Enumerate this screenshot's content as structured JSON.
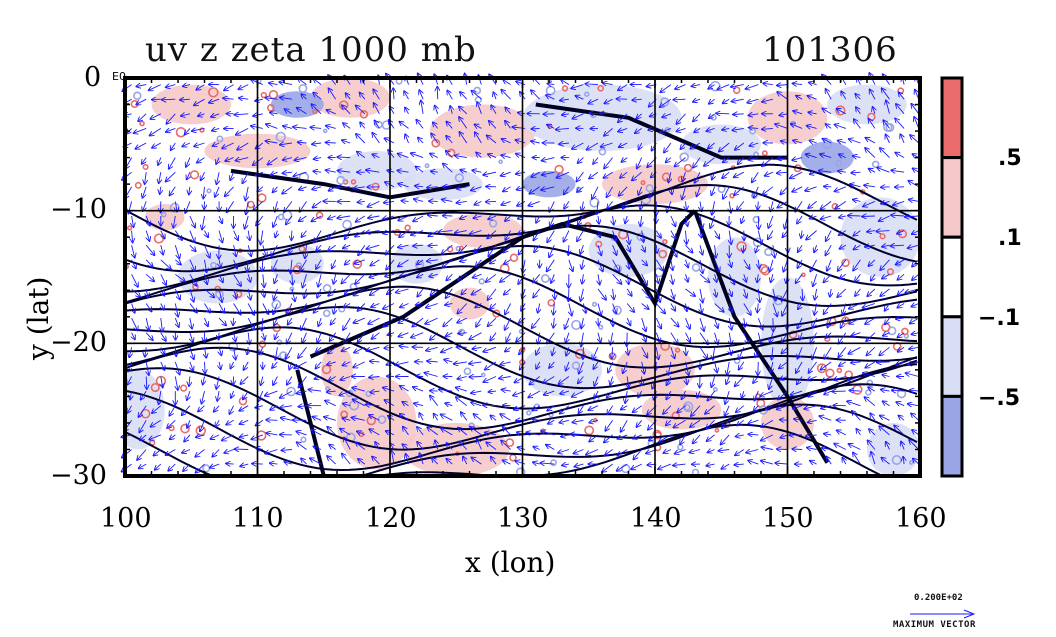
{
  "chart_data": {
    "type": "heatmap",
    "title": "uv z zeta 1000 mb",
    "title_right": "101306",
    "xlabel": "x (lon)",
    "ylabel": "y (lat)",
    "xlim": [
      100,
      160
    ],
    "ylim": [
      -30,
      0
    ],
    "x_ticks": [
      "100",
      "110",
      "120",
      "130",
      "140",
      "150",
      "160"
    ],
    "y_ticks": [
      "0",
      "−10",
      "−20",
      "−30"
    ],
    "corner_label": "E0",
    "grid": true,
    "colorbar": {
      "labels": [
        ".5",
        ".1",
        "−.1",
        "−.5"
      ],
      "bins": [
        {
          "range": "> .5",
          "color": "#e96b6b"
        },
        {
          "range": ".1 to .5",
          "color": "#f5c9c9"
        },
        {
          "range": "-.1 to .1",
          "color": "#ffffff"
        },
        {
          "range": "-.5 to -.1",
          "color": "#d9def5"
        },
        {
          "range": "< -.5",
          "color": "#9aa5e6"
        }
      ]
    },
    "reference_vector": {
      "value": "0.200E+02",
      "caption": "MAXIMUM VECTOR"
    },
    "layers": [
      "wind vectors (uv)",
      "geopotential height contours (z)",
      "relative vorticity shading (zeta)"
    ]
  },
  "colors": {
    "vector": "#1a1aff",
    "contour": "#000033",
    "positive": "#e96b6b",
    "negative": "#9aa5e6",
    "grid": "#000000"
  }
}
